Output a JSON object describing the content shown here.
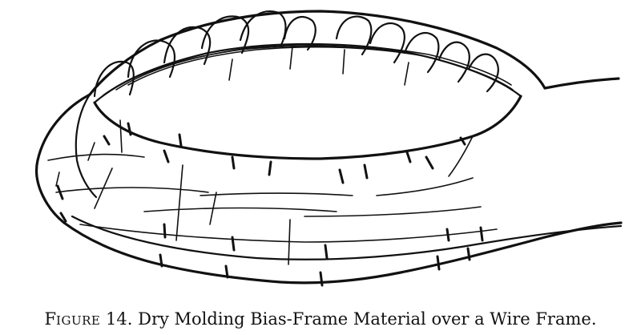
{
  "caption": {
    "figure_first_letter": "F",
    "figure_rest": "IGURE",
    "figure_number": "14.",
    "text": "Dry Molding Bias-Frame Material over a Wire Frame."
  },
  "colors": {
    "ink": "#111111",
    "paper": "#ffffff"
  }
}
